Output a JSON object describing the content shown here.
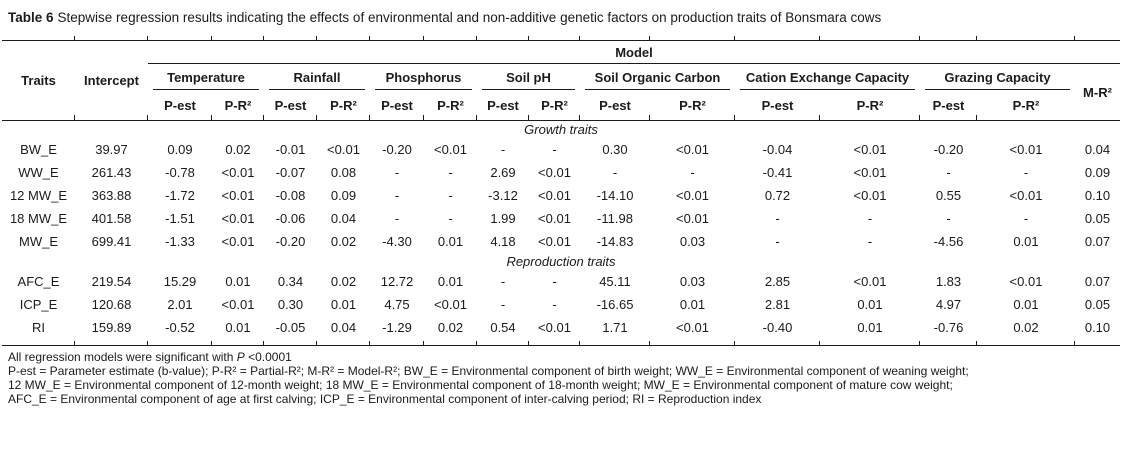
{
  "title": {
    "label": "Table 6",
    "text": "Stepwise regression results indicating the effects of environmental and non-additive genetic factors on production traits of Bonsmara cows"
  },
  "table": {
    "header": {
      "traits": "Traits",
      "intercept": "Intercept",
      "model": "Model",
      "groups": [
        "Temperature",
        "Rainfall",
        "Phosphorus",
        "Soil pH",
        "Soil Organic Carbon",
        "Cation Exchange Capacity",
        "Grazing Capacity"
      ],
      "p_est": "P-est",
      "p_r2": "P-R²",
      "m_r2": "M-R²"
    },
    "sections": [
      {
        "label": "Growth traits",
        "rows": [
          {
            "trait": "BW_E",
            "intercept": "39.97",
            "values": [
              "0.09",
              "0.02",
              "-0.01",
              "<0.01",
              "-0.20",
              "<0.01",
              "-",
              "-",
              "0.30",
              "<0.01",
              "-0.04",
              "<0.01",
              "-0.20",
              "<0.01"
            ],
            "m_r2": "0.04"
          },
          {
            "trait": "WW_E",
            "intercept": "261.43",
            "values": [
              "-0.78",
              "<0.01",
              "-0.07",
              "0.08",
              "-",
              "-",
              "2.69",
              "<0.01",
              "-",
              "-",
              "-0.41",
              "<0.01",
              "-",
              "-"
            ],
            "m_r2": "0.09"
          },
          {
            "trait": "12 MW_E",
            "intercept": "363.88",
            "values": [
              "-1.72",
              "<0.01",
              "-0.08",
              "0.09",
              "-",
              "-",
              "-3.12",
              "<0.01",
              "-14.10",
              "<0.01",
              "0.72",
              "<0.01",
              "0.55",
              "<0.01"
            ],
            "m_r2": "0.10"
          },
          {
            "trait": "18 MW_E",
            "intercept": "401.58",
            "values": [
              "-1.51",
              "<0.01",
              "-0.06",
              "0.04",
              "-",
              "-",
              "1.99",
              "<0.01",
              "-11.98",
              "<0.01",
              "-",
              "-",
              "-",
              "-"
            ],
            "m_r2": "0.05"
          },
          {
            "trait": "MW_E",
            "intercept": "699.41",
            "values": [
              "-1.33",
              "<0.01",
              "-0.20",
              "0.02",
              "-4.30",
              "0.01",
              "4.18",
              "<0.01",
              "-14.83",
              "0.03",
              "-",
              "-",
              "-4.56",
              "0.01"
            ],
            "m_r2": "0.07"
          }
        ]
      },
      {
        "label": "Reproduction traits",
        "rows": [
          {
            "trait": "AFC_E",
            "intercept": "219.54",
            "values": [
              "15.29",
              "0.01",
              "0.34",
              "0.02",
              "12.72",
              "0.01",
              "-",
              "-",
              "45.11",
              "0.03",
              "2.85",
              "<0.01",
              "1.83",
              "<0.01"
            ],
            "m_r2": "0.07"
          },
          {
            "trait": "ICP_E",
            "intercept": "120.68",
            "values": [
              "2.01",
              "<0.01",
              "0.30",
              "0.01",
              "4.75",
              "<0.01",
              "-",
              "-",
              "-16.65",
              "0.01",
              "2.81",
              "0.01",
              "4.97",
              "0.01"
            ],
            "m_r2": "0.05"
          },
          {
            "trait": "RI",
            "intercept": "159.89",
            "values": [
              "-0.52",
              "0.01",
              "-0.05",
              "0.04",
              "-1.29",
              "0.02",
              "0.54",
              "<0.01",
              "1.71",
              "<0.01",
              "-0.40",
              "0.01",
              "-0.76",
              "0.02"
            ],
            "m_r2": "0.10"
          }
        ]
      }
    ]
  },
  "footnotes": {
    "significance": {
      "prefix": "All regression models were significant with ",
      "p": "P",
      "suffix": " <0.0001"
    },
    "lines": [
      "P-est = Parameter estimate (b-value); P-R² = Partial-R²; M-R² = Model-R²; BW_E = Environmental component of birth weight; WW_E = Environmental component of weaning weight;",
      "12 MW_E = Environmental component of 12-month weight; 18 MW_E = Environmental component of 18-month weight; MW_E = Environmental component of mature cow weight;",
      "AFC_E = Environmental component of age at first calving; ICP_E = Environmental component of inter-calving period; RI = Reproduction index"
    ]
  }
}
